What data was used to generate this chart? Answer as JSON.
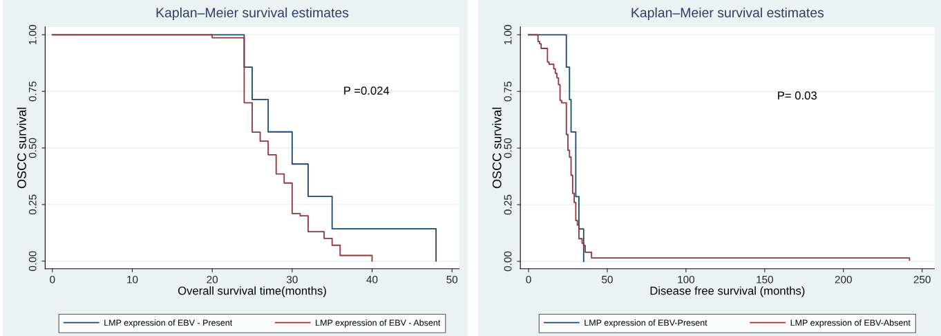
{
  "chart_data": [
    {
      "type": "step",
      "title": "Kaplan–Meier survival estimates",
      "xlabel": "Overall survival time(months)",
      "ylabel": "OSCC survival",
      "annotations": [
        "P =0.024"
      ],
      "series": [
        {
          "name": "LMP expression of EBV - Present",
          "color": "#1a476f",
          "x": [
            0,
            24,
            25,
            27,
            30,
            32,
            35,
            48
          ],
          "values": [
            1,
            0.857,
            0.714,
            0.571,
            0.429,
            0.286,
            0.143,
            0
          ]
        },
        {
          "name": "LMP expression of EBV - Absent",
          "color": "#90353b",
          "x": [
            0,
            20,
            24,
            25,
            26,
            27,
            28,
            29,
            30,
            31,
            32,
            34,
            35,
            36,
            40
          ],
          "values": [
            1,
            0.987,
            0.7,
            0.57,
            0.53,
            0.47,
            0.385,
            0.345,
            0.21,
            0.2,
            0.13,
            0.1,
            0.07,
            0.025,
            0
          ]
        }
      ],
      "xlim": [
        -0.9,
        50.9
      ],
      "xticks": [
        0,
        10,
        20,
        30,
        40,
        50
      ],
      "ylim": [
        -0.034,
        1.035
      ],
      "yticks": [
        {
          "value": 0,
          "label": "0.00"
        },
        {
          "value": 0.25,
          "label": "0.25"
        },
        {
          "value": 0.5,
          "label": "0.50"
        },
        {
          "value": 0.75,
          "label": "0.75"
        },
        {
          "value": 1,
          "label": "1.00"
        }
      ],
      "grid": "y",
      "legend": "bottom"
    },
    {
      "type": "step",
      "title": "Kaplan–Meier survival estimates",
      "xlabel": "Disease free survival (months)",
      "ylabel": "OSCC survival",
      "annotations": [
        "P= 0.03"
      ],
      "series": [
        {
          "name": "LMP expression of EBV-Present",
          "color": "#1a476f",
          "x": [
            0,
            24,
            26,
            27,
            30,
            32,
            35
          ],
          "values": [
            1,
            0.857,
            0.714,
            0.571,
            0.286,
            0.143,
            0
          ]
        },
        {
          "name": "LMP expression of EBV-Absent",
          "color": "#90353b",
          "x": [
            0,
            6,
            7,
            8,
            12,
            13,
            16,
            17,
            18,
            19,
            20,
            21,
            24,
            25,
            26,
            27,
            28,
            29,
            30,
            31,
            32,
            34,
            35,
            36,
            40,
            242
          ],
          "values": [
            1,
            0.97,
            0.96,
            0.94,
            0.88,
            0.87,
            0.85,
            0.83,
            0.81,
            0.78,
            0.71,
            0.7,
            0.56,
            0.49,
            0.46,
            0.38,
            0.3,
            0.26,
            0.18,
            0.16,
            0.1,
            0.08,
            0.07,
            0.04,
            0.015,
            0.005
          ]
        }
      ],
      "xlim": [
        -5.2,
        257.8
      ],
      "xticks": [
        0,
        50,
        100,
        150,
        200,
        250
      ],
      "ylim": [
        -0.033,
        1.035
      ],
      "yticks": [
        {
          "value": 0,
          "label": "0.00"
        },
        {
          "value": 0.25,
          "label": "0.25"
        },
        {
          "value": 0.5,
          "label": "0.50"
        },
        {
          "value": 0.75,
          "label": "0.75"
        },
        {
          "value": 1,
          "label": "1.00"
        }
      ],
      "grid": "y",
      "legend": "bottom"
    }
  ]
}
